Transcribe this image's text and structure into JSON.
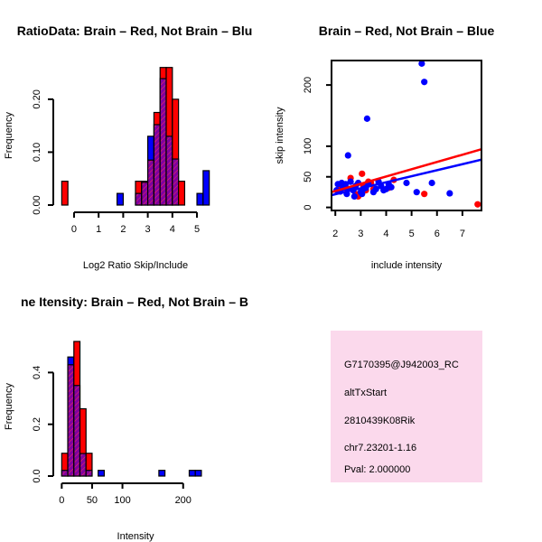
{
  "colors": {
    "red": "#ff0000",
    "blue": "#0000ff",
    "purple": "#8000a0",
    "info_bg": "#fbd9ec",
    "pval": "#b00000"
  },
  "chart_data": [
    {
      "type": "bar",
      "title": "RatioData: Brain – Red, Not Brain – Blu",
      "xlabel": "Log2 Ratio Skip/Include",
      "ylabel": "Frequency",
      "bin_width": 0.25,
      "bin_starts": [
        -0.5,
        -0.25,
        0,
        0.25,
        0.5,
        0.75,
        1,
        1.25,
        1.5,
        1.75,
        2,
        2.25,
        2.5,
        2.75,
        3,
        3.25,
        3.5,
        3.75,
        4,
        4.25,
        4.5,
        4.75,
        5,
        5.25
      ],
      "series": [
        {
          "name": "Brain",
          "color": "red",
          "values": [
            0.045,
            0,
            0,
            0,
            0,
            0,
            0,
            0,
            0,
            0,
            0,
            0,
            0.045,
            0.045,
            0.085,
            0.175,
            0.26,
            0.26,
            0.2,
            0.045,
            0,
            0,
            0,
            0
          ]
        },
        {
          "name": "Not Brain",
          "color": "blue",
          "values": [
            0,
            0,
            0,
            0,
            0,
            0,
            0,
            0,
            0,
            0.022,
            0,
            0,
            0.022,
            0.043,
            0.13,
            0.152,
            0.239,
            0.13,
            0.087,
            0,
            0,
            0,
            0.022,
            0.065
          ]
        }
      ],
      "xticks": [
        "0",
        "1",
        "2",
        "3",
        "4",
        "5"
      ],
      "yticks": [
        "0.00",
        "0.10",
        "0.20"
      ],
      "xlim": [
        -0.55,
        5.55
      ],
      "ylim": [
        0,
        0.28
      ]
    },
    {
      "type": "scatter",
      "title": "Brain – Red, Not Brain – Blue",
      "xlabel": "include intensity",
      "ylabel": "skip intensity",
      "xticks": [
        "2",
        "3",
        "4",
        "5",
        "6",
        "7"
      ],
      "yticks": [
        "0",
        "50",
        "100",
        "200"
      ],
      "xlim": [
        1.85,
        7.75
      ],
      "ylim": [
        -5,
        240
      ],
      "series": [
        {
          "name": "Brain",
          "color": "red",
          "points": [
            [
              2.2,
              30
            ],
            [
              2.4,
              32
            ],
            [
              2.6,
              48
            ],
            [
              2.8,
              22
            ],
            [
              2.9,
              18
            ],
            [
              3.05,
              55
            ],
            [
              3.1,
              36
            ],
            [
              3.2,
              28
            ],
            [
              3.3,
              42
            ],
            [
              3.4,
              40
            ],
            [
              3.5,
              30
            ],
            [
              4.1,
              32
            ],
            [
              4.3,
              45
            ],
            [
              5.5,
              22
            ],
            [
              7.6,
              5
            ]
          ],
          "fit": [
            [
              1.85,
              25
            ],
            [
              7.75,
              95
            ]
          ]
        },
        {
          "name": "Not Brain",
          "color": "blue",
          "points": [
            [
              2.05,
              28
            ],
            [
              2.1,
              38
            ],
            [
              2.2,
              26
            ],
            [
              2.25,
              40
            ],
            [
              2.3,
              32
            ],
            [
              2.4,
              38
            ],
            [
              2.45,
              22
            ],
            [
              2.5,
              30
            ],
            [
              2.5,
              85
            ],
            [
              2.6,
              42
            ],
            [
              2.7,
              28
            ],
            [
              2.75,
              18
            ],
            [
              2.8,
              35
            ],
            [
              2.9,
              40
            ],
            [
              3.0,
              25
            ],
            [
              3.05,
              22
            ],
            [
              3.1,
              30
            ],
            [
              3.2,
              32
            ],
            [
              3.25,
              145
            ],
            [
              3.3,
              38
            ],
            [
              3.5,
              25
            ],
            [
              3.6,
              30
            ],
            [
              3.7,
              42
            ],
            [
              3.8,
              35
            ],
            [
              3.9,
              28
            ],
            [
              4.0,
              30
            ],
            [
              4.1,
              38
            ],
            [
              4.2,
              33
            ],
            [
              4.8,
              40
            ],
            [
              5.2,
              25
            ],
            [
              5.4,
              235
            ],
            [
              5.5,
              205
            ],
            [
              5.8,
              40
            ],
            [
              6.5,
              23
            ]
          ],
          "fit": [
            [
              1.85,
              20
            ],
            [
              7.75,
              78
            ]
          ]
        }
      ]
    },
    {
      "type": "bar",
      "title": "ne Itensity: Brain – Red, Not Brain – B",
      "xlabel": "Intensity",
      "ylabel": "Frequency",
      "bin_width": 10,
      "bin_starts": [
        0,
        10,
        20,
        30,
        40,
        50,
        60,
        70,
        80,
        90,
        100,
        110,
        120,
        130,
        140,
        150,
        160,
        170,
        180,
        190,
        200,
        210,
        220,
        230
      ],
      "series": [
        {
          "name": "Brain",
          "color": "red",
          "values": [
            0.088,
            0.43,
            0.52,
            0.26,
            0.088,
            0,
            0,
            0,
            0,
            0,
            0,
            0,
            0,
            0,
            0,
            0,
            0,
            0,
            0,
            0,
            0,
            0,
            0,
            0
          ]
        },
        {
          "name": "Not Brain",
          "color": "blue",
          "values": [
            0.022,
            0.46,
            0.35,
            0.087,
            0.022,
            0,
            0.022,
            0,
            0,
            0,
            0,
            0,
            0,
            0,
            0,
            0,
            0.022,
            0,
            0,
            0,
            0,
            0.022,
            0.022,
            0
          ]
        }
      ],
      "xticks": [
        "0",
        "50",
        "100",
        "200"
      ],
      "yticks": [
        "0.0",
        "0.2",
        "0.4"
      ],
      "xlim": [
        -2,
        245
      ],
      "ylim": [
        0,
        0.52
      ]
    }
  ],
  "info_box": {
    "lines": [
      "G7170395@J942003_RC",
      "altTxStart",
      "2810439K08Rik",
      "chr7.23201-1.16"
    ],
    "pval": "Pval: 2.000000"
  }
}
